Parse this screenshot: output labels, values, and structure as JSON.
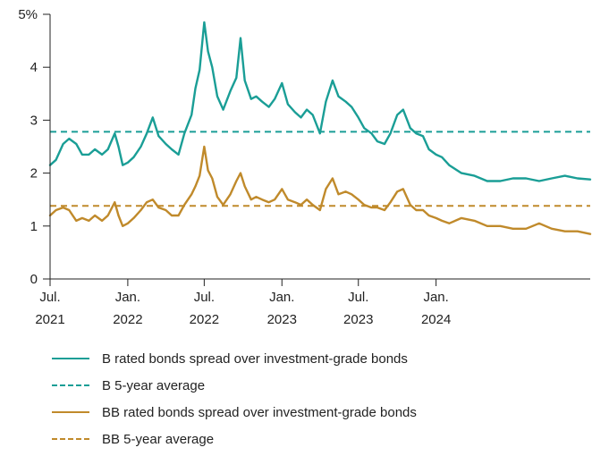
{
  "chart_data": {
    "type": "line",
    "y_unit_label": "5%",
    "ylim": [
      0,
      5
    ],
    "y_ticks": [
      {
        "value": 0,
        "label": "0"
      },
      {
        "value": 1,
        "label": "1"
      },
      {
        "value": 2,
        "label": "2"
      },
      {
        "value": 3,
        "label": "3"
      },
      {
        "value": 4,
        "label": "4"
      },
      {
        "value": 5,
        "label": "5%"
      }
    ],
    "xlim": [
      "2021-07-01",
      "2024-12-31"
    ],
    "x_ticks": [
      {
        "date": "2021-07-01",
        "line1": "Jul.",
        "line2": "2021"
      },
      {
        "date": "2022-01-01",
        "line1": "Jan.",
        "line2": "2022"
      },
      {
        "date": "2022-07-01",
        "line1": "Jul.",
        "line2": "2022"
      },
      {
        "date": "2023-01-01",
        "line1": "Jan.",
        "line2": "2023"
      },
      {
        "date": "2023-07-01",
        "line1": "Jul.",
        "line2": "2023"
      },
      {
        "date": "2024-01-01",
        "line1": "Jan.",
        "line2": "2024"
      }
    ],
    "grid": false,
    "legend_position": "bottom",
    "series": [
      {
        "name": "B rated bonds spread over investment-grade bonds",
        "color": "#1a9e96",
        "style": "solid",
        "points": [
          [
            "2021-07-01",
            2.15
          ],
          [
            "2021-07-15",
            2.25
          ],
          [
            "2021-08-01",
            2.55
          ],
          [
            "2021-08-15",
            2.65
          ],
          [
            "2021-09-01",
            2.55
          ],
          [
            "2021-09-15",
            2.35
          ],
          [
            "2021-10-01",
            2.35
          ],
          [
            "2021-10-15",
            2.45
          ],
          [
            "2021-11-01",
            2.35
          ],
          [
            "2021-11-15",
            2.45
          ],
          [
            "2021-12-01",
            2.75
          ],
          [
            "2021-12-10",
            2.5
          ],
          [
            "2021-12-20",
            2.15
          ],
          [
            "2022-01-01",
            2.2
          ],
          [
            "2022-01-15",
            2.3
          ],
          [
            "2022-02-01",
            2.5
          ],
          [
            "2022-02-15",
            2.75
          ],
          [
            "2022-03-01",
            3.05
          ],
          [
            "2022-03-15",
            2.7
          ],
          [
            "2022-04-01",
            2.55
          ],
          [
            "2022-04-15",
            2.45
          ],
          [
            "2022-05-01",
            2.35
          ],
          [
            "2022-05-15",
            2.75
          ],
          [
            "2022-06-01",
            3.1
          ],
          [
            "2022-06-10",
            3.6
          ],
          [
            "2022-06-20",
            3.95
          ],
          [
            "2022-07-01",
            4.85
          ],
          [
            "2022-07-10",
            4.3
          ],
          [
            "2022-07-20",
            4.0
          ],
          [
            "2022-08-01",
            3.45
          ],
          [
            "2022-08-15",
            3.2
          ],
          [
            "2022-09-01",
            3.55
          ],
          [
            "2022-09-15",
            3.8
          ],
          [
            "2022-09-25",
            4.55
          ],
          [
            "2022-10-05",
            3.75
          ],
          [
            "2022-10-20",
            3.4
          ],
          [
            "2022-11-01",
            3.45
          ],
          [
            "2022-11-15",
            3.35
          ],
          [
            "2022-12-01",
            3.25
          ],
          [
            "2022-12-15",
            3.4
          ],
          [
            "2023-01-01",
            3.7
          ],
          [
            "2023-01-15",
            3.3
          ],
          [
            "2023-02-01",
            3.15
          ],
          [
            "2023-02-15",
            3.05
          ],
          [
            "2023-03-01",
            3.2
          ],
          [
            "2023-03-15",
            3.1
          ],
          [
            "2023-04-01",
            2.75
          ],
          [
            "2023-04-15",
            3.35
          ],
          [
            "2023-05-01",
            3.75
          ],
          [
            "2023-05-15",
            3.45
          ],
          [
            "2023-06-01",
            3.35
          ],
          [
            "2023-06-15",
            3.25
          ],
          [
            "2023-07-01",
            3.05
          ],
          [
            "2023-07-15",
            2.85
          ],
          [
            "2023-08-01",
            2.75
          ],
          [
            "2023-08-15",
            2.6
          ],
          [
            "2023-09-01",
            2.55
          ],
          [
            "2023-09-15",
            2.75
          ],
          [
            "2023-10-01",
            3.1
          ],
          [
            "2023-10-15",
            3.2
          ],
          [
            "2023-11-01",
            2.85
          ],
          [
            "2023-11-15",
            2.75
          ],
          [
            "2023-12-01",
            2.7
          ],
          [
            "2023-12-15",
            2.45
          ],
          [
            "2024-01-01",
            2.35
          ],
          [
            "2024-01-15",
            2.3
          ],
          [
            "2024-02-01",
            2.15
          ],
          [
            "2024-03-01",
            2.0
          ],
          [
            "2024-04-01",
            1.95
          ],
          [
            "2024-05-01",
            1.85
          ],
          [
            "2024-06-01",
            1.85
          ],
          [
            "2024-07-01",
            1.9
          ],
          [
            "2024-08-01",
            1.9
          ],
          [
            "2024-09-01",
            1.85
          ],
          [
            "2024-10-01",
            1.9
          ],
          [
            "2024-11-01",
            1.95
          ],
          [
            "2024-12-01",
            1.9
          ],
          [
            "2024-12-31",
            1.88
          ]
        ]
      },
      {
        "name": "B 5-year average",
        "color": "#1a9e96",
        "style": "dashed",
        "constant": 2.78
      },
      {
        "name": "BB rated bonds spread over investment-grade bonds",
        "color": "#c08a2b",
        "style": "solid",
        "points": [
          [
            "2021-07-01",
            1.2
          ],
          [
            "2021-07-15",
            1.3
          ],
          [
            "2021-08-01",
            1.35
          ],
          [
            "2021-08-15",
            1.3
          ],
          [
            "2021-09-01",
            1.1
          ],
          [
            "2021-09-15",
            1.15
          ],
          [
            "2021-10-01",
            1.1
          ],
          [
            "2021-10-15",
            1.2
          ],
          [
            "2021-11-01",
            1.1
          ],
          [
            "2021-11-15",
            1.2
          ],
          [
            "2021-12-01",
            1.45
          ],
          [
            "2021-12-10",
            1.2
          ],
          [
            "2021-12-20",
            1.0
          ],
          [
            "2022-01-01",
            1.05
          ],
          [
            "2022-01-15",
            1.15
          ],
          [
            "2022-02-01",
            1.3
          ],
          [
            "2022-02-15",
            1.45
          ],
          [
            "2022-03-01",
            1.5
          ],
          [
            "2022-03-15",
            1.35
          ],
          [
            "2022-04-01",
            1.3
          ],
          [
            "2022-04-15",
            1.2
          ],
          [
            "2022-05-01",
            1.2
          ],
          [
            "2022-05-15",
            1.4
          ],
          [
            "2022-06-01",
            1.6
          ],
          [
            "2022-06-10",
            1.75
          ],
          [
            "2022-06-20",
            1.95
          ],
          [
            "2022-07-01",
            2.5
          ],
          [
            "2022-07-10",
            2.05
          ],
          [
            "2022-07-20",
            1.9
          ],
          [
            "2022-08-01",
            1.55
          ],
          [
            "2022-08-15",
            1.4
          ],
          [
            "2022-09-01",
            1.6
          ],
          [
            "2022-09-15",
            1.85
          ],
          [
            "2022-09-25",
            2.0
          ],
          [
            "2022-10-05",
            1.75
          ],
          [
            "2022-10-20",
            1.5
          ],
          [
            "2022-11-01",
            1.55
          ],
          [
            "2022-11-15",
            1.5
          ],
          [
            "2022-12-01",
            1.45
          ],
          [
            "2022-12-15",
            1.5
          ],
          [
            "2023-01-01",
            1.7
          ],
          [
            "2023-01-15",
            1.5
          ],
          [
            "2023-02-01",
            1.45
          ],
          [
            "2023-02-15",
            1.4
          ],
          [
            "2023-03-01",
            1.5
          ],
          [
            "2023-03-15",
            1.4
          ],
          [
            "2023-04-01",
            1.3
          ],
          [
            "2023-04-15",
            1.7
          ],
          [
            "2023-05-01",
            1.9
          ],
          [
            "2023-05-15",
            1.6
          ],
          [
            "2023-06-01",
            1.65
          ],
          [
            "2023-06-15",
            1.6
          ],
          [
            "2023-07-01",
            1.5
          ],
          [
            "2023-07-15",
            1.4
          ],
          [
            "2023-08-01",
            1.35
          ],
          [
            "2023-08-15",
            1.35
          ],
          [
            "2023-09-01",
            1.3
          ],
          [
            "2023-09-15",
            1.45
          ],
          [
            "2023-10-01",
            1.65
          ],
          [
            "2023-10-15",
            1.7
          ],
          [
            "2023-11-01",
            1.4
          ],
          [
            "2023-11-15",
            1.3
          ],
          [
            "2023-12-01",
            1.3
          ],
          [
            "2023-12-15",
            1.2
          ],
          [
            "2024-01-01",
            1.15
          ],
          [
            "2024-01-15",
            1.1
          ],
          [
            "2024-02-01",
            1.05
          ],
          [
            "2024-03-01",
            1.15
          ],
          [
            "2024-04-01",
            1.1
          ],
          [
            "2024-05-01",
            1.0
          ],
          [
            "2024-06-01",
            1.0
          ],
          [
            "2024-07-01",
            0.95
          ],
          [
            "2024-08-01",
            0.95
          ],
          [
            "2024-09-01",
            1.05
          ],
          [
            "2024-10-01",
            0.95
          ],
          [
            "2024-11-01",
            0.9
          ],
          [
            "2024-12-01",
            0.9
          ],
          [
            "2024-12-31",
            0.85
          ]
        ]
      },
      {
        "name": "BB 5-year average",
        "color": "#c08a2b",
        "style": "dashed",
        "constant": 1.38
      }
    ]
  }
}
